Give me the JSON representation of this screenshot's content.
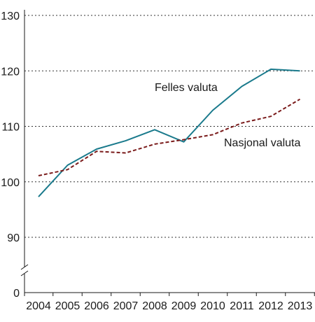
{
  "chart_data": {
    "type": "line",
    "x": [
      "2004",
      "2005",
      "2006",
      "2007",
      "2008",
      "2009",
      "2010",
      "2011",
      "2012",
      "2013"
    ],
    "series": [
      {
        "name": "Felles valuta",
        "values": [
          97.3,
          103.0,
          105.9,
          107.4,
          109.4,
          107.2,
          112.9,
          117.2,
          120.3,
          120.0
        ],
        "color": "#1a7a8c",
        "style": "solid"
      },
      {
        "name": "Nasjonal valuta",
        "values": [
          101.1,
          102.2,
          105.5,
          105.2,
          106.8,
          107.6,
          108.5,
          110.6,
          111.8,
          114.9
        ],
        "color": "#7a1a1a",
        "style": "dashed"
      }
    ],
    "yticks": [
      0,
      90,
      100,
      110,
      120,
      130
    ],
    "ylim": [
      90,
      130
    ],
    "axis_break": true,
    "grid": "horizontal-dotted",
    "title": "",
    "xlabel": "",
    "ylabel": ""
  }
}
